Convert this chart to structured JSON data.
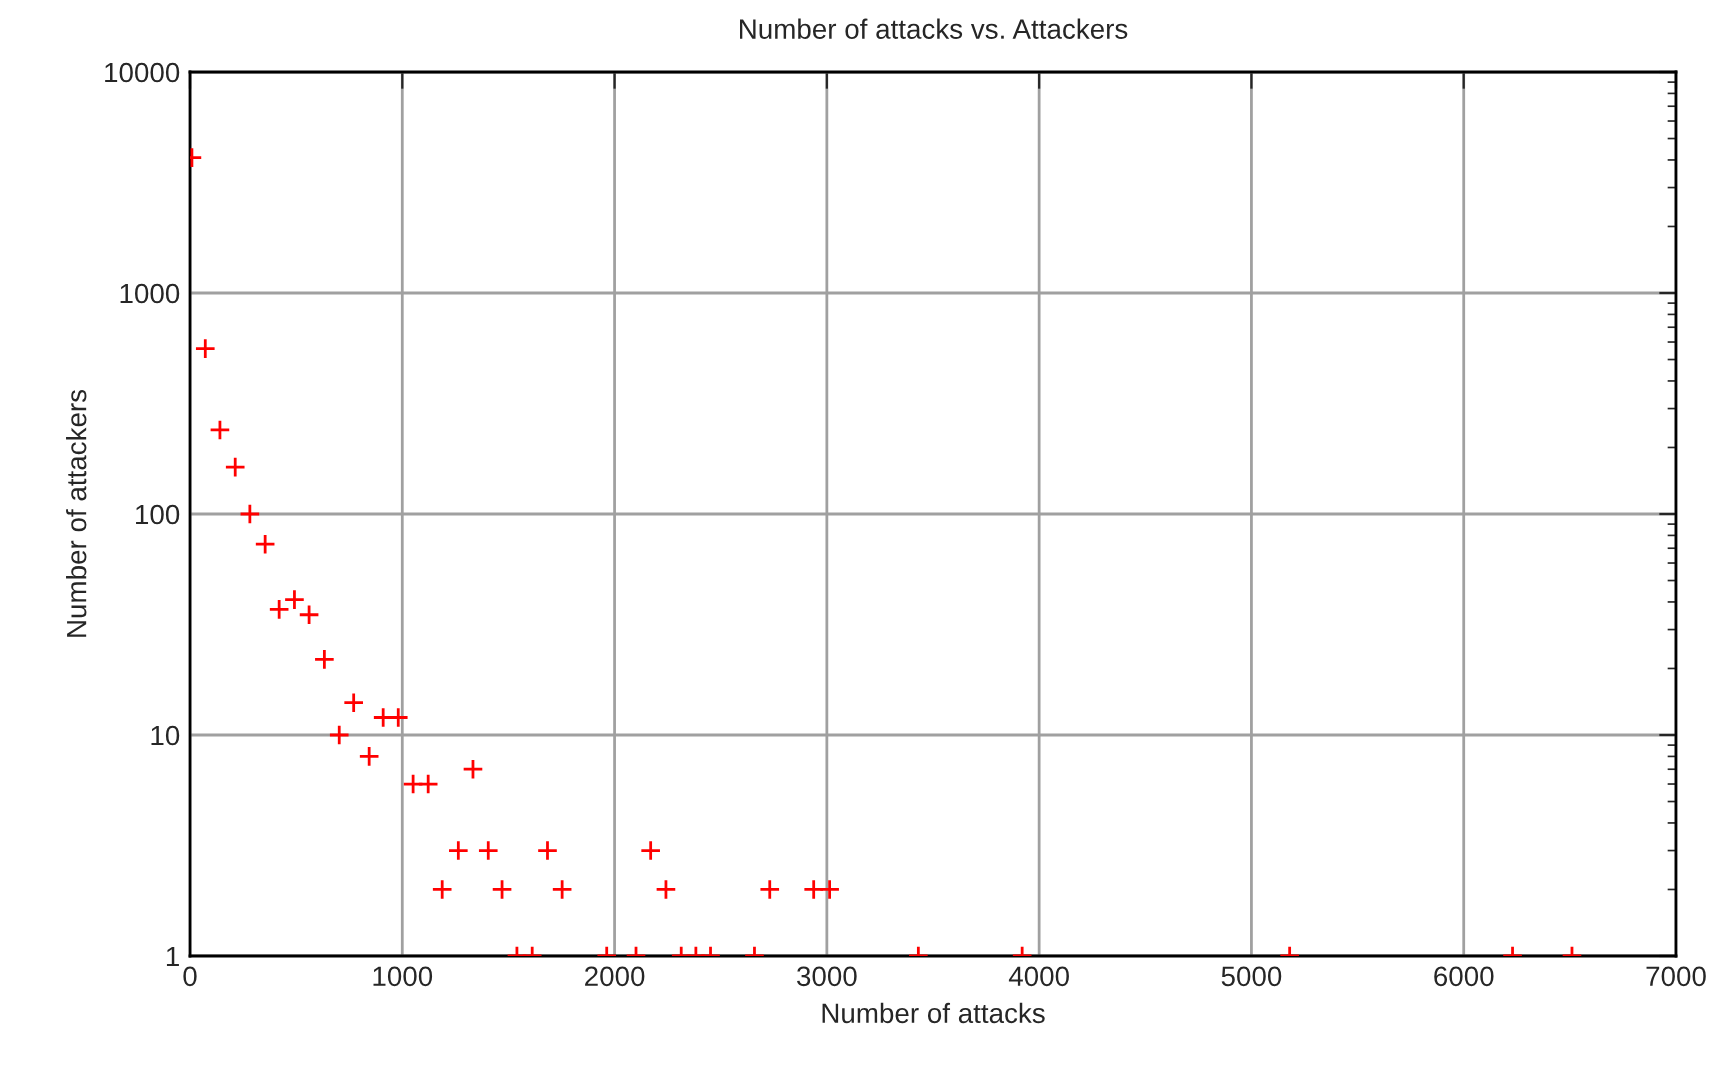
{
  "chart_data": {
    "type": "scatter",
    "title": "Number of attacks vs. Attackers",
    "xlabel": "Number of attacks",
    "ylabel": "Number of attackers",
    "x": [
      9,
      72,
      141,
      213,
      282,
      354,
      420,
      492,
      561,
      633,
      703,
      771,
      844,
      910,
      981,
      1051,
      1122,
      1188,
      1264,
      1333,
      1405,
      1470,
      1540,
      1612,
      1684,
      1753,
      1963,
      2101,
      2170,
      2242,
      2314,
      2383,
      2452,
      2659,
      2731,
      2938,
      3013,
      3431,
      3920,
      5180,
      6230,
      6510
    ],
    "series": [
      {
        "color": "#ff0000",
        "values": [
          4100,
          560,
          240,
          163,
          100,
          73,
          37,
          41,
          35,
          22,
          10,
          14,
          8,
          12,
          12,
          6,
          6,
          2,
          3,
          7,
          3,
          2,
          1,
          1,
          3,
          2,
          1,
          1,
          3,
          2,
          1,
          1,
          1,
          1,
          2,
          2,
          2,
          1,
          1,
          1,
          1,
          1
        ]
      }
    ],
    "log": "y",
    "xlim": [
      0,
      7000
    ],
    "ylim": [
      1,
      10000
    ],
    "xticks": [
      0,
      1000,
      2000,
      3000,
      4000,
      5000,
      6000,
      7000
    ],
    "yticks": [
      1,
      10,
      100,
      1000,
      10000
    ],
    "grid": true,
    "marker": "cross",
    "legend": false
  }
}
